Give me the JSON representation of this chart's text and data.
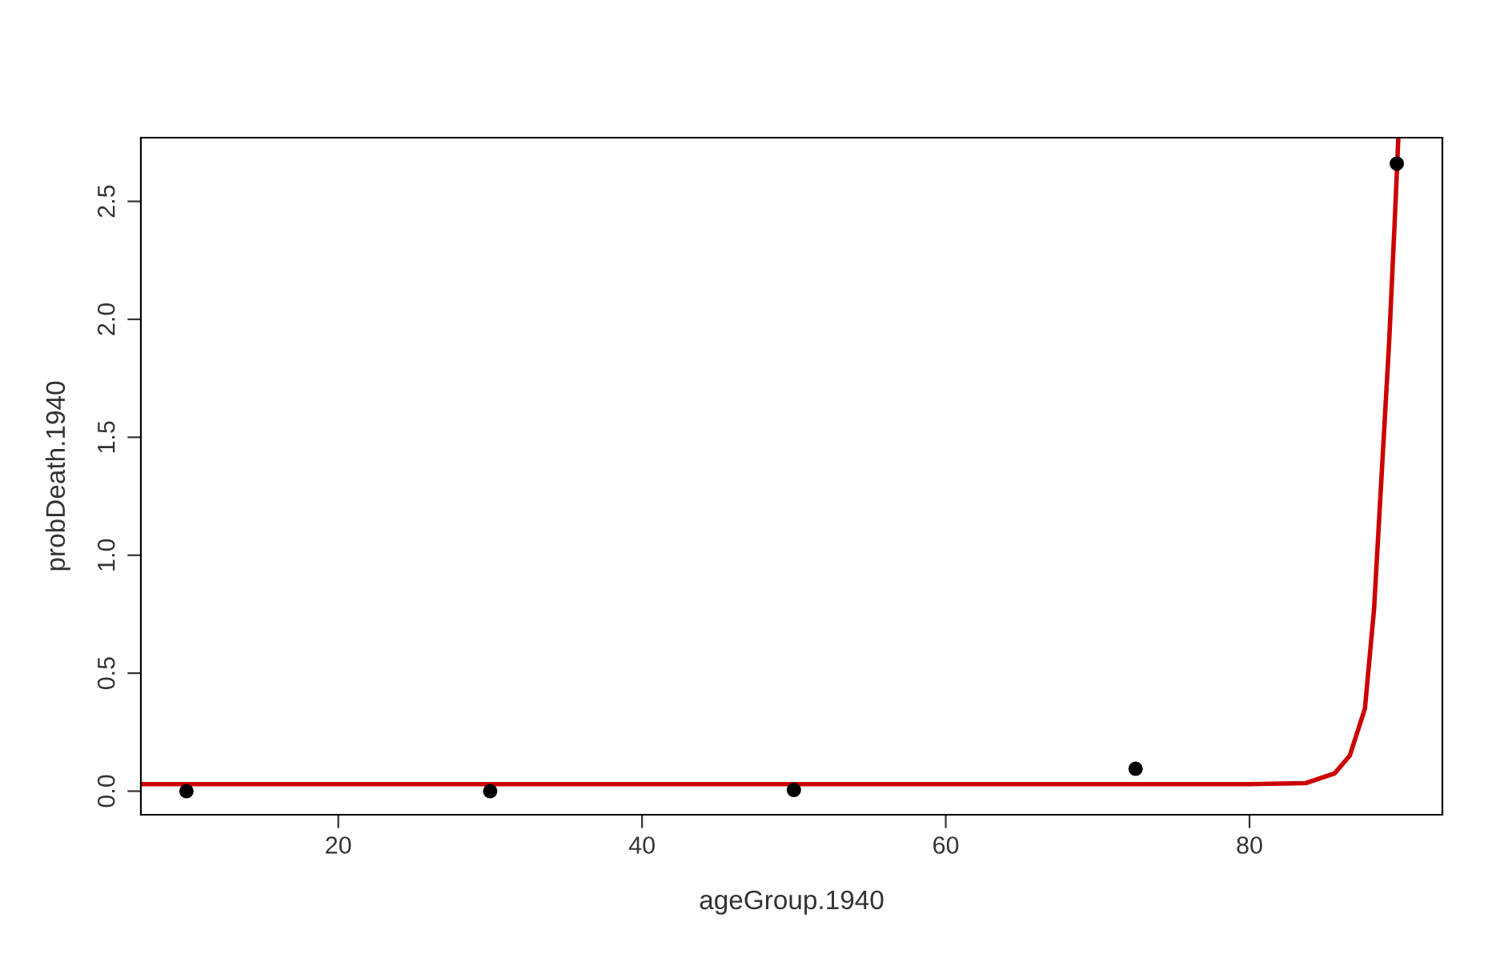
{
  "chart_data": {
    "type": "scatter",
    "xlabel": "ageGroup.1940",
    "ylabel": "probDeath.1940",
    "xlim": [
      7,
      92.7
    ],
    "ylim": [
      -0.1,
      2.77
    ],
    "xticks": [
      20,
      40,
      60,
      80
    ],
    "yticks": [
      {
        "value": 0,
        "label": "0.0"
      },
      {
        "value": 0.5,
        "label": "0.5"
      },
      {
        "value": 1,
        "label": "1.0"
      },
      {
        "value": 1.5,
        "label": "1.5"
      },
      {
        "value": 2,
        "label": "2.0"
      },
      {
        "value": 2.5,
        "label": "2.5"
      }
    ],
    "grid": false,
    "legend": false,
    "marker": "circle",
    "series": [
      {
        "color": "#000000",
        "x": [
          10,
          30,
          50,
          72.5,
          89.7
        ],
        "values": [
          0,
          0,
          0.005,
          0.095,
          2.66
        ]
      },
      {
        "type": "line",
        "color": "#cc0000",
        "line_style": "solid",
        "marker": "none",
        "x": [
          7,
          20,
          40,
          60,
          80,
          83.7,
          85.6,
          86.6,
          87.6,
          88.2,
          88.7,
          89.2,
          89.6,
          89.8
        ],
        "values": [
          0.03,
          0.03,
          0.03,
          0.03,
          0.03,
          0.034,
          0.075,
          0.15,
          0.35,
          0.77,
          1.34,
          1.91,
          2.47,
          2.77
        ]
      }
    ]
  }
}
